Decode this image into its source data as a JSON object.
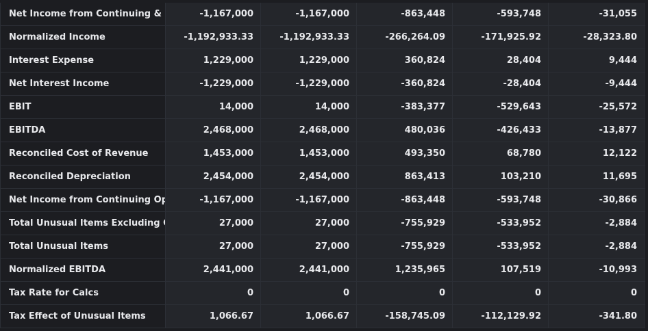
{
  "rows": [
    {
      "label": "Net Income from Continuing & D...",
      "values": [
        "-1,167,000",
        "-1,167,000",
        "-863,448",
        "-593,748",
        "-31,055"
      ]
    },
    {
      "label": "Normalized Income",
      "values": [
        "-1,192,933.33",
        "-1,192,933.33",
        "-266,264.09",
        "-171,925.92",
        "-28,323.80"
      ]
    },
    {
      "label": "Interest Expense",
      "values": [
        "1,229,000",
        "1,229,000",
        "360,824",
        "28,404",
        "9,444"
      ]
    },
    {
      "label": "Net Interest Income",
      "values": [
        "-1,229,000",
        "-1,229,000",
        "-360,824",
        "-28,404",
        "-9,444"
      ]
    },
    {
      "label": "EBIT",
      "values": [
        "14,000",
        "14,000",
        "-383,377",
        "-529,643",
        "-25,572"
      ]
    },
    {
      "label": "EBITDA",
      "values": [
        "2,468,000",
        "2,468,000",
        "480,036",
        "-426,433",
        "-13,877"
      ]
    },
    {
      "label": "Reconciled Cost of Revenue",
      "values": [
        "1,453,000",
        "1,453,000",
        "493,350",
        "68,780",
        "12,122"
      ]
    },
    {
      "label": "Reconciled Depreciation",
      "values": [
        "2,454,000",
        "2,454,000",
        "863,413",
        "103,210",
        "11,695"
      ]
    },
    {
      "label": "Net Income from Continuing Op...",
      "values": [
        "-1,167,000",
        "-1,167,000",
        "-863,448",
        "-593,748",
        "-30,866"
      ]
    },
    {
      "label": "Total Unusual Items Excluding G...",
      "values": [
        "27,000",
        "27,000",
        "-755,929",
        "-533,952",
        "-2,884"
      ]
    },
    {
      "label": "Total Unusual Items",
      "values": [
        "27,000",
        "27,000",
        "-755,929",
        "-533,952",
        "-2,884"
      ]
    },
    {
      "label": "Normalized EBITDA",
      "values": [
        "2,441,000",
        "2,441,000",
        "1,235,965",
        "107,519",
        "-10,993"
      ]
    },
    {
      "label": "Tax Rate for Calcs",
      "values": [
        "0",
        "0",
        "0",
        "0",
        "0"
      ]
    },
    {
      "label": "Tax Effect of Unusual Items",
      "values": [
        "1,066.67",
        "1,066.67",
        "-158,745.09",
        "-112,129.92",
        "-341.80"
      ]
    }
  ]
}
